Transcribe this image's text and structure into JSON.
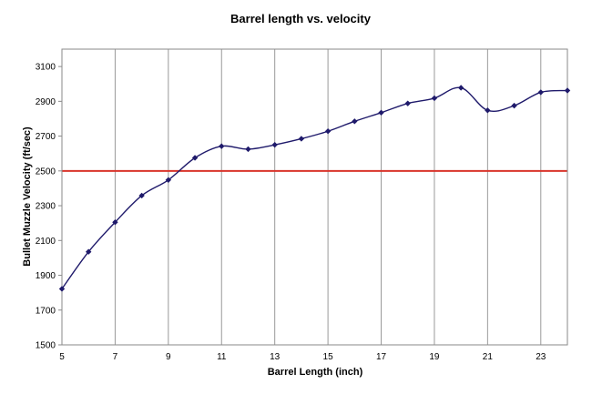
{
  "chart_data": {
    "type": "line",
    "title": "Barrel length vs. velocity",
    "xlabel": "Barrel Length (inch)",
    "ylabel": "Bullet Muzzle Velocity (ft/sec)",
    "xlim": [
      5,
      24
    ],
    "ylim": [
      1500,
      3200
    ],
    "x_ticks": [
      5,
      7,
      9,
      11,
      13,
      15,
      17,
      19,
      21,
      23
    ],
    "y_ticks": [
      1500,
      1700,
      1900,
      2100,
      2300,
      2500,
      2700,
      2900,
      3100
    ],
    "grid": "vertical",
    "series": [
      {
        "x": [
          5,
          6,
          7,
          8,
          9,
          10,
          11,
          12,
          13,
          14,
          15,
          16,
          17,
          18,
          19,
          20,
          21,
          22,
          23,
          24
        ],
        "values": [
          1822,
          2035,
          2205,
          2358,
          2448,
          2575,
          2642,
          2625,
          2650,
          2685,
          2728,
          2785,
          2835,
          2888,
          2918,
          2978,
          2848,
          2875,
          2952,
          2962
        ],
        "color": "#1f1a6b",
        "marker": "diamond"
      }
    ],
    "reference_lines": [
      {
        "axis": "y",
        "value": 2500,
        "color": "#d9342b"
      }
    ]
  }
}
